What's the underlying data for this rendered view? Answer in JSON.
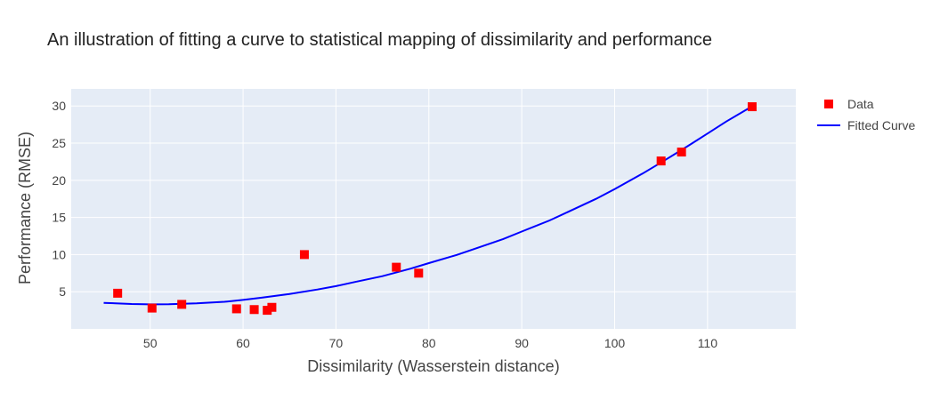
{
  "chart_data": {
    "type": "scatter",
    "title": "An illustration of fitting a curve to statistical mapping of dissimilarity and performance",
    "xlabel": "Dissimilarity (Wasserstein distance)",
    "ylabel": "Performance (RMSE)",
    "xlim": [
      41.5,
      119.5
    ],
    "ylim": [
      0.0,
      32.3
    ],
    "xticks": [
      50,
      60,
      70,
      80,
      90,
      100,
      110
    ],
    "yticks": [
      5,
      10,
      15,
      20,
      25,
      30
    ],
    "grid": true,
    "legend_position": "top-right",
    "series": [
      {
        "name": "Data",
        "kind": "markers",
        "color": "#ff0000",
        "marker": "square",
        "points": [
          {
            "x": 46.5,
            "y": 4.8
          },
          {
            "x": 50.2,
            "y": 2.8
          },
          {
            "x": 53.4,
            "y": 3.3
          },
          {
            "x": 59.3,
            "y": 2.7
          },
          {
            "x": 61.2,
            "y": 2.6
          },
          {
            "x": 62.6,
            "y": 2.5
          },
          {
            "x": 63.1,
            "y": 2.9
          },
          {
            "x": 66.6,
            "y": 10.0
          },
          {
            "x": 76.5,
            "y": 8.3
          },
          {
            "x": 78.9,
            "y": 7.5
          },
          {
            "x": 105.0,
            "y": 22.6
          },
          {
            "x": 107.2,
            "y": 23.8
          },
          {
            "x": 114.8,
            "y": 29.9
          }
        ]
      },
      {
        "name": "Fitted Curve",
        "kind": "line",
        "color": "#0000ff",
        "points": [
          {
            "x": 45.0,
            "y": 3.5
          },
          {
            "x": 48.0,
            "y": 3.35
          },
          {
            "x": 50.0,
            "y": 3.3
          },
          {
            "x": 52.0,
            "y": 3.33
          },
          {
            "x": 55.0,
            "y": 3.45
          },
          {
            "x": 58.0,
            "y": 3.65
          },
          {
            "x": 60.0,
            "y": 3.9
          },
          {
            "x": 62.0,
            "y": 4.2
          },
          {
            "x": 65.0,
            "y": 4.7
          },
          {
            "x": 68.0,
            "y": 5.3
          },
          {
            "x": 70.0,
            "y": 5.75
          },
          {
            "x": 72.0,
            "y": 6.3
          },
          {
            "x": 75.0,
            "y": 7.1
          },
          {
            "x": 78.0,
            "y": 8.1
          },
          {
            "x": 80.0,
            "y": 8.85
          },
          {
            "x": 83.0,
            "y": 9.95
          },
          {
            "x": 85.0,
            "y": 10.8
          },
          {
            "x": 88.0,
            "y": 12.1
          },
          {
            "x": 90.0,
            "y": 13.1
          },
          {
            "x": 93.0,
            "y": 14.6
          },
          {
            "x": 95.0,
            "y": 15.75
          },
          {
            "x": 98.0,
            "y": 17.5
          },
          {
            "x": 100.0,
            "y": 18.8
          },
          {
            "x": 103.0,
            "y": 20.9
          },
          {
            "x": 105.0,
            "y": 22.4
          },
          {
            "x": 108.0,
            "y": 24.7
          },
          {
            "x": 110.0,
            "y": 26.3
          },
          {
            "x": 112.0,
            "y": 27.9
          },
          {
            "x": 115.0,
            "y": 30.1
          }
        ]
      }
    ]
  }
}
